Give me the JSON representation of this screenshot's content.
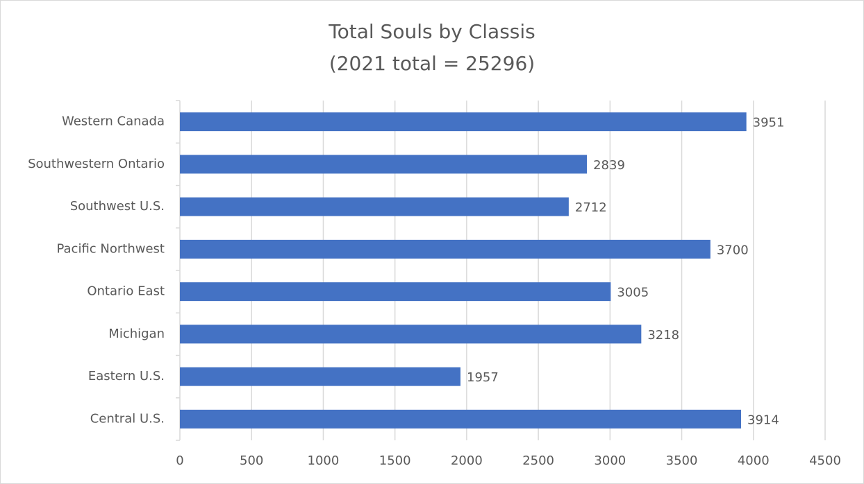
{
  "chart_data": {
    "type": "bar",
    "orientation": "horizontal",
    "title": "Total Souls by Classis",
    "subtitle": "(2021 total = 25296)",
    "categories": [
      "Western Canada",
      "Southwestern Ontario",
      "Southwest U.S.",
      "Pacific Northwest",
      "Ontario East",
      "Michigan",
      "Eastern U.S.",
      "Central U.S."
    ],
    "values": [
      3951,
      2839,
      2712,
      3700,
      3005,
      3218,
      1957,
      3914
    ],
    "color": "#4472c4",
    "xlim": [
      0,
      4500
    ],
    "xticks": [
      0,
      500,
      1000,
      1500,
      2000,
      2500,
      3000,
      3500,
      4000,
      4500
    ],
    "grid": true,
    "data_labels": true
  }
}
